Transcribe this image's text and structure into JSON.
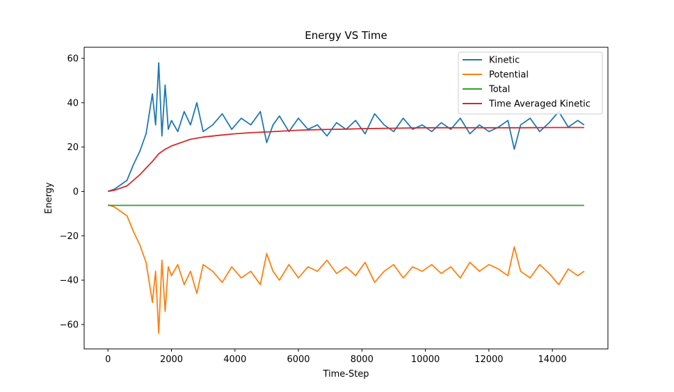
{
  "chart_data": {
    "type": "line",
    "title": "Energy VS Time",
    "xlabel": "Time-Step",
    "ylabel": "Energy",
    "xlim": [
      -750,
      15750
    ],
    "ylim": [
      -71,
      65
    ],
    "xticks": [
      0,
      2000,
      4000,
      6000,
      8000,
      10000,
      12000,
      14000
    ],
    "yticks": [
      -60,
      -40,
      -20,
      0,
      20,
      40,
      60
    ],
    "legend_position": "top-right",
    "grid": false,
    "series": [
      {
        "name": "Kinetic",
        "color": "#1f77b4",
        "x": [
          0,
          200,
          400,
          600,
          800,
          1000,
          1200,
          1300,
          1400,
          1500,
          1600,
          1700,
          1800,
          1900,
          2000,
          2200,
          2400,
          2600,
          2800,
          3000,
          3300,
          3600,
          3900,
          4200,
          4500,
          4800,
          5000,
          5200,
          5400,
          5700,
          6000,
          6300,
          6600,
          6900,
          7200,
          7500,
          7800,
          8100,
          8400,
          8700,
          9000,
          9300,
          9600,
          9900,
          10200,
          10500,
          10800,
          11100,
          11400,
          11700,
          12000,
          12300,
          12600,
          12800,
          13000,
          13300,
          13600,
          13900,
          14200,
          14500,
          14800,
          15000
        ],
        "values": [
          0,
          1,
          3,
          5,
          12,
          18,
          26,
          35,
          44,
          30,
          58,
          25,
          48,
          28,
          32,
          27,
          36,
          30,
          40,
          27,
          30,
          35,
          28,
          33,
          30,
          36,
          22,
          30,
          34,
          27,
          33,
          28,
          30,
          25,
          31,
          28,
          32,
          26,
          35,
          30,
          27,
          33,
          28,
          30,
          27,
          31,
          28,
          33,
          26,
          30,
          27,
          29,
          32,
          19,
          30,
          33,
          27,
          31,
          36,
          29,
          32,
          30
        ]
      },
      {
        "name": "Potential",
        "color": "#ff7f0e",
        "x": [
          0,
          200,
          400,
          600,
          800,
          1000,
          1200,
          1300,
          1400,
          1500,
          1600,
          1700,
          1800,
          1900,
          2000,
          2200,
          2400,
          2600,
          2800,
          3000,
          3300,
          3600,
          3900,
          4200,
          4500,
          4800,
          5000,
          5200,
          5400,
          5700,
          6000,
          6300,
          6600,
          6900,
          7200,
          7500,
          7800,
          8100,
          8400,
          8700,
          9000,
          9300,
          9600,
          9900,
          10200,
          10500,
          10800,
          11100,
          11400,
          11700,
          12000,
          12300,
          12600,
          12800,
          13000,
          13300,
          13600,
          13900,
          14200,
          14500,
          14800,
          15000
        ],
        "values": [
          -6,
          -7,
          -9,
          -11,
          -18,
          -24,
          -32,
          -41,
          -50,
          -36,
          -64,
          -31,
          -54,
          -34,
          -38,
          -33,
          -42,
          -36,
          -46,
          -33,
          -36,
          -41,
          -34,
          -39,
          -36,
          -42,
          -28,
          -36,
          -40,
          -33,
          -39,
          -34,
          -36,
          -31,
          -37,
          -34,
          -38,
          -32,
          -41,
          -36,
          -33,
          -39,
          -34,
          -36,
          -33,
          -37,
          -34,
          -39,
          -32,
          -36,
          -33,
          -35,
          -38,
          -25,
          -36,
          -39,
          -33,
          -37,
          -42,
          -35,
          -38,
          -36
        ]
      },
      {
        "name": "Total",
        "color": "#2ca02c",
        "x": [
          0,
          15000
        ],
        "values": [
          -6.3,
          -6.3
        ]
      },
      {
        "name": "Time Averaged Kinetic",
        "color": "#d62728",
        "x": [
          0,
          200,
          400,
          600,
          800,
          1000,
          1200,
          1400,
          1600,
          1800,
          2000,
          2300,
          2600,
          3000,
          3500,
          4000,
          4500,
          5000,
          5500,
          6000,
          6500,
          7000,
          7500,
          8000,
          8500,
          9000,
          9500,
          10000,
          11000,
          12000,
          13000,
          14000,
          15000
        ],
        "values": [
          0,
          0.5,
          1.5,
          2.5,
          5,
          7.5,
          10.5,
          13.5,
          17,
          19,
          20.5,
          22,
          23.5,
          24.5,
          25.3,
          26,
          26.5,
          26.8,
          27.2,
          27.6,
          27.8,
          28,
          28.1,
          28.3,
          28.4,
          28.5,
          28.6,
          28.7,
          28.7,
          28.7,
          28.7,
          28.8,
          28.8
        ]
      }
    ]
  }
}
